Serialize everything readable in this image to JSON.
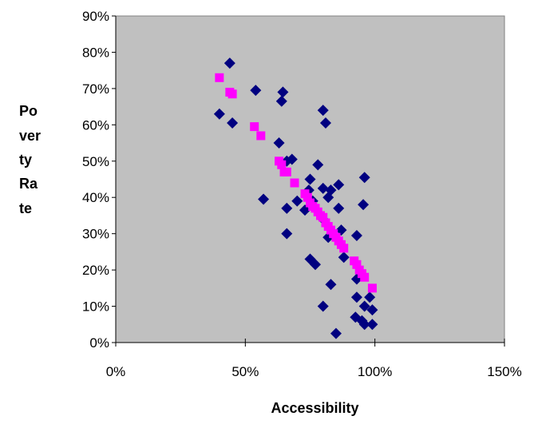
{
  "chart_data": {
    "type": "scatter",
    "title": "",
    "xlabel": "Accessibility",
    "ylabel_lines": [
      "Po",
      "ver",
      "ty",
      "Ra",
      "te"
    ],
    "xlim": [
      0,
      1.5
    ],
    "ylim": [
      0,
      0.9
    ],
    "x_ticks": [
      {
        "value": 0,
        "label": "0%"
      },
      {
        "value": 0.5,
        "label": "50%"
      },
      {
        "value": 1.0,
        "label": "100%"
      },
      {
        "value": 1.5,
        "label": "150%"
      }
    ],
    "y_ticks": [
      {
        "value": 0,
        "label": "0%"
      },
      {
        "value": 0.1,
        "label": "10%"
      },
      {
        "value": 0.2,
        "label": "20%"
      },
      {
        "value": 0.3,
        "label": "30%"
      },
      {
        "value": 0.4,
        "label": "40%"
      },
      {
        "value": 0.5,
        "label": "50%"
      },
      {
        "value": 0.6,
        "label": "60%"
      },
      {
        "value": 0.7,
        "label": "70%"
      },
      {
        "value": 0.8,
        "label": "80%"
      },
      {
        "value": 0.9,
        "label": "90%"
      }
    ],
    "plot_background": "#c0c0c0",
    "grid": false,
    "legend": "none",
    "series": [
      {
        "marker": "diamond",
        "color": "#000080",
        "points": [
          [
            0.44,
            0.77
          ],
          [
            0.4,
            0.63
          ],
          [
            0.45,
            0.605
          ],
          [
            0.54,
            0.695
          ],
          [
            0.645,
            0.69
          ],
          [
            0.64,
            0.665
          ],
          [
            0.63,
            0.55
          ],
          [
            0.57,
            0.395
          ],
          [
            0.66,
            0.37
          ],
          [
            0.66,
            0.3
          ],
          [
            0.68,
            0.505
          ],
          [
            0.66,
            0.5
          ],
          [
            0.8,
            0.64
          ],
          [
            0.81,
            0.605
          ],
          [
            0.78,
            0.49
          ],
          [
            0.75,
            0.45
          ],
          [
            0.745,
            0.42
          ],
          [
            0.8,
            0.425
          ],
          [
            0.83,
            0.42
          ],
          [
            0.86,
            0.435
          ],
          [
            0.82,
            0.4
          ],
          [
            0.73,
            0.365
          ],
          [
            0.76,
            0.39
          ],
          [
            0.86,
            0.37
          ],
          [
            0.96,
            0.455
          ],
          [
            0.955,
            0.38
          ],
          [
            0.8,
            0.34
          ],
          [
            0.82,
            0.29
          ],
          [
            0.87,
            0.31
          ],
          [
            0.93,
            0.295
          ],
          [
            0.75,
            0.23
          ],
          [
            0.77,
            0.215
          ],
          [
            0.88,
            0.235
          ],
          [
            0.83,
            0.16
          ],
          [
            0.93,
            0.175
          ],
          [
            0.93,
            0.125
          ],
          [
            0.98,
            0.125
          ],
          [
            0.8,
            0.1
          ],
          [
            0.96,
            0.1
          ],
          [
            0.99,
            0.09
          ],
          [
            0.925,
            0.07
          ],
          [
            0.95,
            0.06
          ],
          [
            0.96,
            0.05
          ],
          [
            0.99,
            0.05
          ],
          [
            0.85,
            0.025
          ],
          [
            0.7,
            0.39
          ]
        ]
      },
      {
        "marker": "square",
        "color": "#ff00ff",
        "points": [
          [
            0.4,
            0.73
          ],
          [
            0.44,
            0.69
          ],
          [
            0.45,
            0.685
          ],
          [
            0.535,
            0.595
          ],
          [
            0.56,
            0.57
          ],
          [
            0.63,
            0.5
          ],
          [
            0.64,
            0.49
          ],
          [
            0.65,
            0.47
          ],
          [
            0.66,
            0.47
          ],
          [
            0.69,
            0.44
          ],
          [
            0.73,
            0.41
          ],
          [
            0.74,
            0.4
          ],
          [
            0.75,
            0.385
          ],
          [
            0.76,
            0.375
          ],
          [
            0.77,
            0.37
          ],
          [
            0.78,
            0.36
          ],
          [
            0.79,
            0.35
          ],
          [
            0.8,
            0.345
          ],
          [
            0.81,
            0.33
          ],
          [
            0.82,
            0.32
          ],
          [
            0.83,
            0.31
          ],
          [
            0.84,
            0.3
          ],
          [
            0.85,
            0.29
          ],
          [
            0.86,
            0.28
          ],
          [
            0.87,
            0.27
          ],
          [
            0.88,
            0.26
          ],
          [
            0.92,
            0.225
          ],
          [
            0.93,
            0.215
          ],
          [
            0.94,
            0.2
          ],
          [
            0.95,
            0.19
          ],
          [
            0.96,
            0.18
          ],
          [
            0.99,
            0.15
          ]
        ]
      }
    ]
  }
}
